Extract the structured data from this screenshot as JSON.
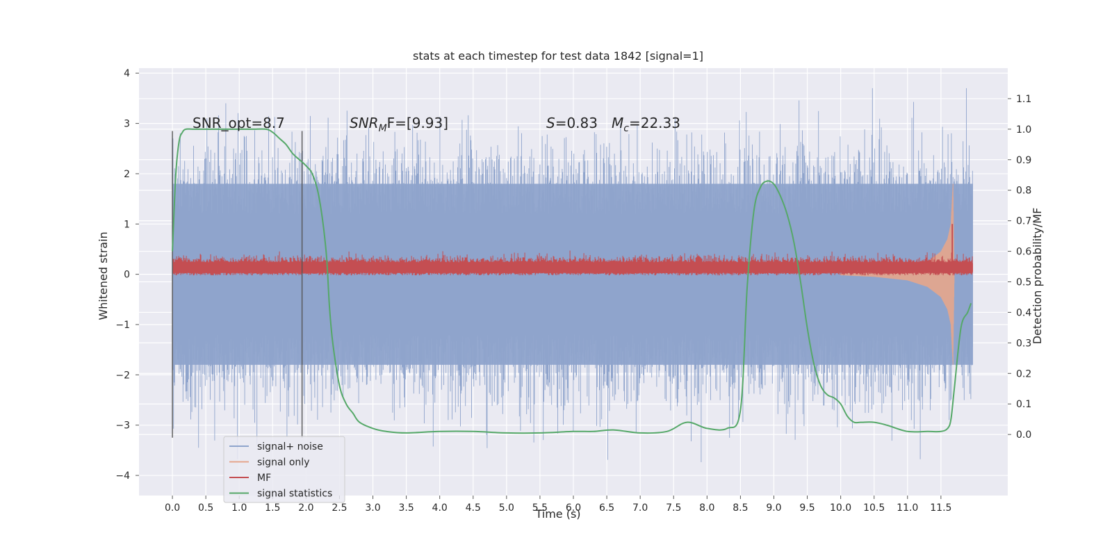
{
  "chart_data": {
    "type": "line",
    "title": "stats at each timestep for test data 1842 [signal=1]",
    "xlabel": "Time (s)",
    "ylabel": "Whitened strain",
    "y2label": "Detection probability/MF",
    "xlim": [
      -0.5,
      12.5
    ],
    "ylim": [
      -4.4,
      4.1
    ],
    "y2lim": [
      -0.2,
      1.2
    ],
    "x_ticks": [
      0.0,
      0.5,
      1.0,
      1.5,
      2.0,
      2.5,
      3.0,
      3.5,
      4.0,
      4.5,
      5.0,
      5.5,
      6.0,
      6.5,
      7.0,
      7.5,
      8.0,
      8.5,
      9.0,
      9.5,
      10.0,
      10.5,
      11.0,
      11.5
    ],
    "x_tick_labels": [
      "0.0",
      "0.5",
      "1.0",
      "1.5",
      "2.0",
      "2.5",
      "3.0",
      "3.5",
      "4.0",
      "4.5",
      "5.0",
      "5.5",
      "6.0",
      "6.5",
      "7.0",
      "7.5",
      "8.0",
      "8.5",
      "9.0",
      "9.5",
      "10.0",
      "10.5",
      "11.0",
      "11.5"
    ],
    "y_ticks": [
      -4,
      -3,
      -2,
      -1,
      0,
      1,
      2,
      3,
      4
    ],
    "y_tick_labels": [
      "−4",
      "−3",
      "−2",
      "−1",
      "0",
      "1",
      "2",
      "3",
      "4"
    ],
    "y2_ticks": [
      0.0,
      0.1,
      0.2,
      0.3,
      0.4,
      0.5,
      0.6,
      0.7,
      0.8,
      0.9,
      1.0,
      1.1
    ],
    "y2_tick_labels": [
      "0.0",
      "0.1",
      "0.2",
      "0.3",
      "0.4",
      "0.5",
      "0.6",
      "0.7",
      "0.8",
      "0.9",
      "1.0",
      "1.1"
    ],
    "grid": true,
    "legend_position": "lower-left",
    "annotations": {
      "snr_opt": "SNR_opt=8.7",
      "snr_mf_main": "SNR",
      "snr_mf_sub": "M",
      "snr_mf_rest": "F=[9.93]",
      "s_main": "S",
      "s_rest": "=0.83",
      "mc_main": "M",
      "mc_sub": "c",
      "mc_rest": "=22.33"
    },
    "vertical_markers": [
      {
        "x": 0.0,
        "y_range": [
          -3.25,
          2.85
        ]
      },
      {
        "x": 1.94,
        "y_range": [
          -3.25,
          2.85
        ]
      }
    ],
    "noise_envelope": {
      "x_range": [
        0.0,
        11.98
      ],
      "typical_range": [
        -1.8,
        1.8
      ],
      "extreme_range": [
        -4.0,
        3.7
      ]
    },
    "series": [
      {
        "name": "signal+ noise",
        "color": "#8fa4cc",
        "axis": "y",
        "x_range": [
          0.0,
          11.98
        ],
        "envelope": [
          -4.0,
          3.7
        ]
      },
      {
        "name": "signal only",
        "color": "#e5a68c",
        "axis": "y",
        "x": [
          10.0,
          10.5,
          11.0,
          11.3,
          11.5,
          11.6,
          11.65,
          11.68,
          11.7
        ],
        "amplitude": [
          0.02,
          0.05,
          0.12,
          0.25,
          0.45,
          0.7,
          1.0,
          1.8,
          0.0
        ]
      },
      {
        "name": "MF",
        "color": "#c44e52",
        "axis": "y",
        "x_range": [
          0.0,
          11.98
        ],
        "band": [
          0.0,
          0.3
        ],
        "peak": {
          "x": 11.67,
          "y": 1.0
        }
      },
      {
        "name": "signal statistics",
        "color": "#55a868",
        "axis": "y2",
        "x": [
          0.0,
          0.05,
          0.1,
          0.15,
          0.2,
          0.3,
          0.5,
          0.8,
          1.0,
          1.2,
          1.4,
          1.5,
          1.6,
          1.7,
          1.8,
          1.9,
          2.0,
          2.1,
          2.2,
          2.3,
          2.35,
          2.4,
          2.5,
          2.6,
          2.7,
          2.8,
          3.0,
          3.2,
          3.5,
          4.0,
          4.5,
          5.0,
          5.5,
          6.0,
          6.3,
          6.6,
          7.0,
          7.4,
          7.7,
          8.0,
          8.3,
          8.5,
          8.6,
          8.7,
          8.8,
          8.9,
          9.0,
          9.1,
          9.2,
          9.3,
          9.4,
          9.5,
          9.6,
          9.7,
          9.8,
          9.9,
          10.0,
          10.1,
          10.2,
          10.3,
          10.5,
          10.7,
          11.0,
          11.3,
          11.5,
          11.6,
          11.65,
          11.7,
          11.8,
          11.9,
          11.95
        ],
        "values": [
          0.6,
          0.85,
          0.96,
          0.99,
          1.0,
          1.0,
          1.0,
          1.0,
          1.0,
          1.0,
          1.0,
          0.99,
          0.97,
          0.95,
          0.92,
          0.9,
          0.88,
          0.85,
          0.77,
          0.6,
          0.42,
          0.3,
          0.16,
          0.1,
          0.07,
          0.04,
          0.02,
          0.01,
          0.005,
          0.01,
          0.01,
          0.005,
          0.005,
          0.01,
          0.01,
          0.015,
          0.005,
          0.01,
          0.04,
          0.02,
          0.02,
          0.08,
          0.48,
          0.73,
          0.81,
          0.83,
          0.82,
          0.78,
          0.72,
          0.63,
          0.5,
          0.35,
          0.23,
          0.16,
          0.13,
          0.12,
          0.1,
          0.06,
          0.04,
          0.04,
          0.04,
          0.03,
          0.01,
          0.01,
          0.01,
          0.02,
          0.05,
          0.15,
          0.35,
          0.4,
          0.43
        ]
      }
    ]
  }
}
